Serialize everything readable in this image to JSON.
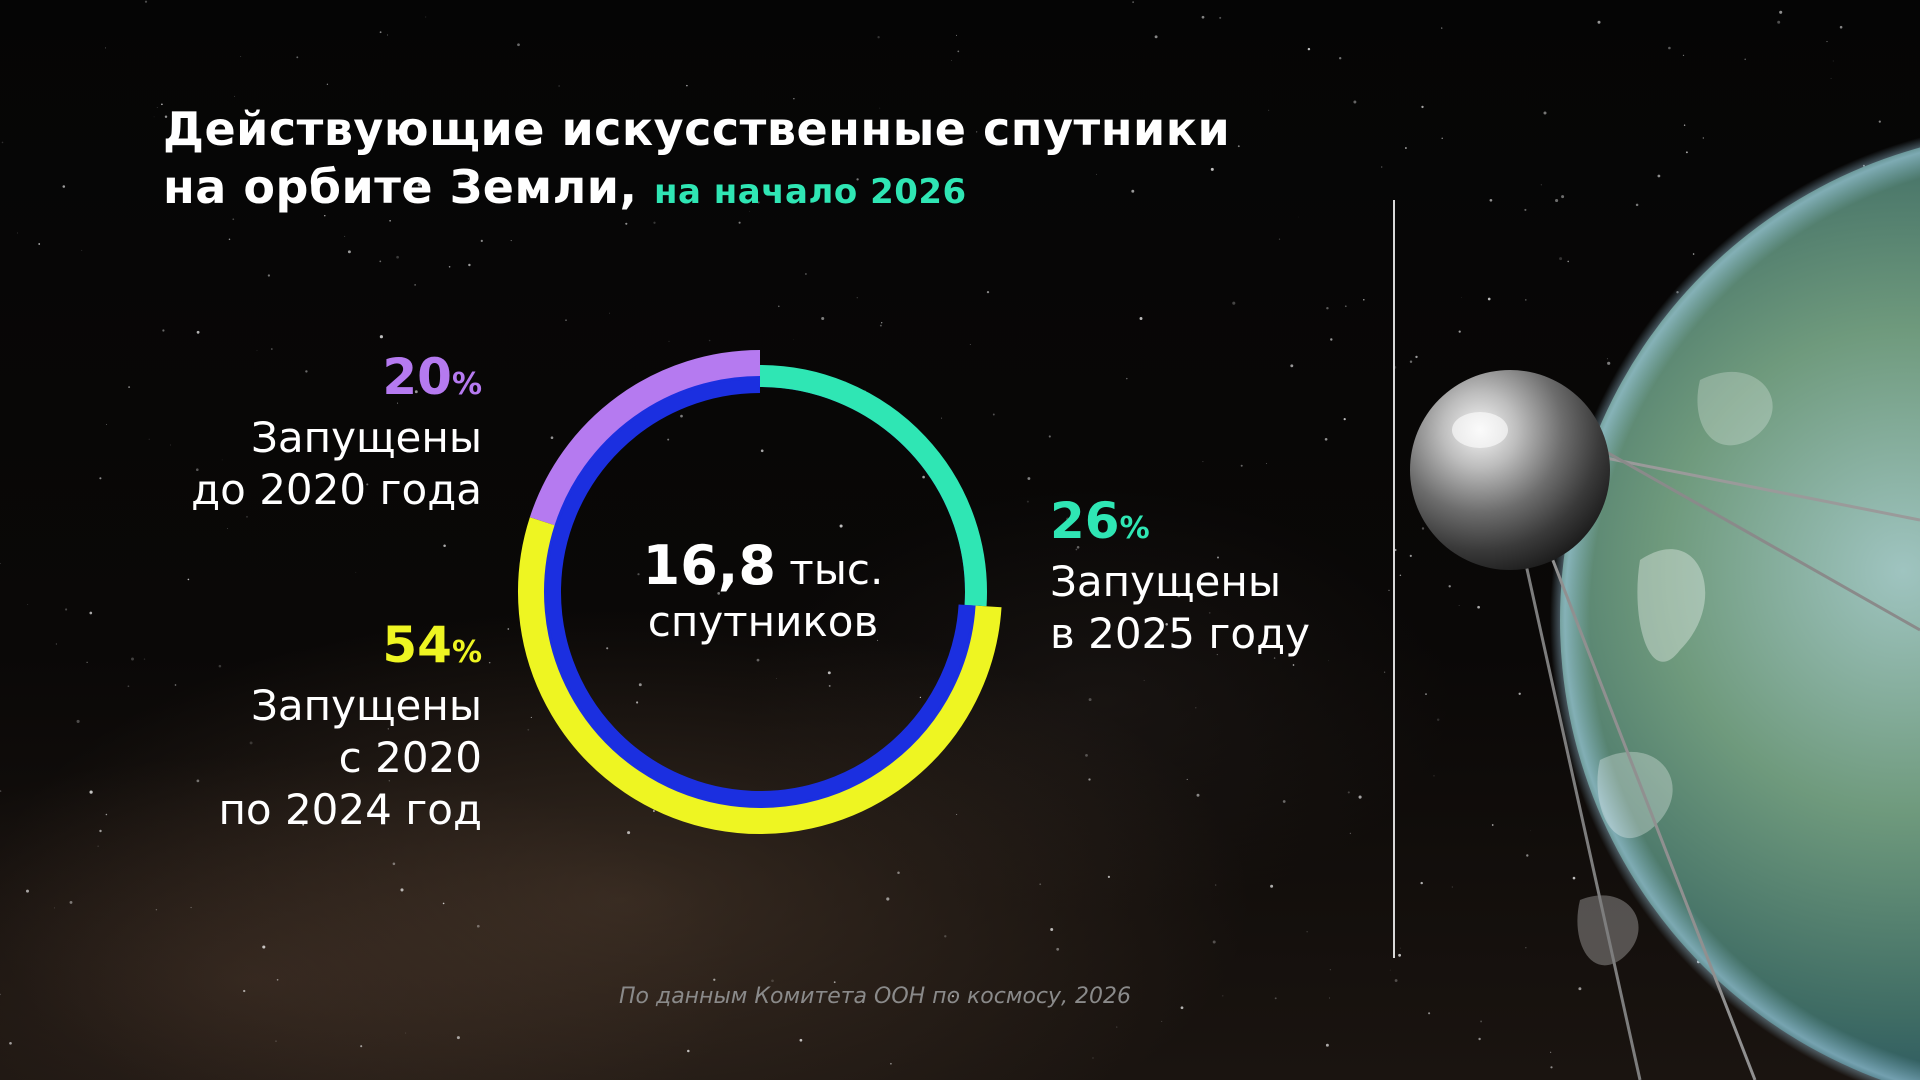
{
  "title": {
    "line1": "Действующие искусственные спутники",
    "line2": "на орбите Земли,",
    "accent": "на начало 2026"
  },
  "center": {
    "value": "16,8",
    "unit": "тыс.",
    "caption": "спутников"
  },
  "labels": {
    "before2020": {
      "pct": "20",
      "sign": "%",
      "line1": "Запущены",
      "line2": "до 2020 года"
    },
    "y2020_2024": {
      "pct": "54",
      "sign": "%",
      "line1": "Запущены",
      "line2": "с 2020",
      "line3": "по 2024 год"
    },
    "y2025": {
      "pct": "26",
      "sign": "%",
      "line1": "Запущены",
      "line2": "в 2025 году"
    }
  },
  "source": "По данным Комитета ООН по космосу, 2026",
  "colors": {
    "before2020": "#b57af0",
    "y2020_2024": "#eef522",
    "y2025": "#2fe6b4",
    "inner_ring": "#1b2fe0",
    "title_accent": "#2fe6b4"
  },
  "icons": {
    "satellite": "sputnik-satellite-icon",
    "planet": "earth-planet-icon"
  },
  "chart_data": {
    "type": "pie",
    "variant": "donut",
    "total_label": "16,8 тыс. спутников",
    "categories": [
      "до 2020 года",
      "с 2020 по 2024 год",
      "в 2025 году"
    ],
    "values": [
      20,
      54,
      26
    ],
    "unit": "%",
    "colors": [
      "#b57af0",
      "#eef522",
      "#2fe6b4"
    ]
  }
}
